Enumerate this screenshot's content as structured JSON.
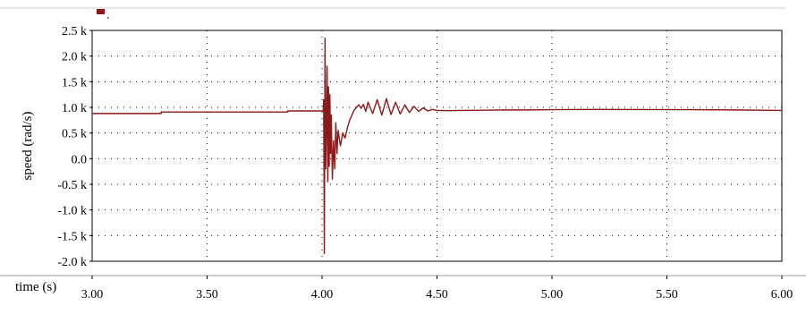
{
  "chart_data": {
    "type": "line",
    "title": "",
    "xlabel": "time (s)",
    "ylabel": "speed (rad/s)",
    "xlim": [
      3.0,
      6.0
    ],
    "ylim": [
      -2000,
      2500
    ],
    "xticks": [
      3.0,
      3.5,
      4.0,
      4.5,
      5.0,
      5.5,
      6.0
    ],
    "xtick_labels": [
      "3.00",
      "3.50",
      "4.00",
      "4.50",
      "5.00",
      "5.50",
      "6.00"
    ],
    "yticks": [
      2500,
      2000,
      1500,
      1000,
      500,
      0,
      -500,
      -1000,
      -1500,
      -2000
    ],
    "ytick_labels": [
      "2.5 k",
      "2.0 k",
      "1.5 k",
      "1.0 k",
      "0.5 k",
      "0.0",
      "-0.5 k",
      "-1.0 k",
      "-1.5 k",
      "-2.0 k"
    ],
    "grid": true,
    "legend": "top-left",
    "series_color": "#8b1a1a",
    "series": [
      {
        "name": "",
        "x": [
          3.0,
          3.3,
          3.3,
          3.85,
          3.85,
          4.005,
          4.007,
          4.01,
          4.013,
          4.016,
          4.019,
          4.022,
          4.025,
          4.028,
          4.031,
          4.034,
          4.037,
          4.04,
          4.045,
          4.05,
          4.055,
          4.06,
          4.065,
          4.07,
          4.08,
          4.09,
          4.1,
          4.11,
          4.12,
          4.13,
          4.14,
          4.15,
          4.16,
          4.17,
          4.18,
          4.19,
          4.2,
          4.22,
          4.24,
          4.26,
          4.28,
          4.3,
          4.32,
          4.34,
          4.36,
          4.38,
          4.4,
          4.42,
          4.44,
          4.46,
          4.48,
          4.5,
          4.55,
          4.6,
          4.7,
          4.8,
          4.9,
          5.0,
          5.2,
          5.4,
          5.6,
          5.8,
          6.0
        ],
        "y": [
          880,
          880,
          910,
          910,
          930,
          930,
          1150,
          -1850,
          2350,
          -200,
          600,
          1800,
          -450,
          1400,
          -150,
          1250,
          100,
          850,
          -400,
          350,
          -200,
          700,
          100,
          550,
          250,
          500,
          400,
          600,
          750,
          850,
          950,
          1000,
          1050,
          980,
          1060,
          920,
          1100,
          880,
          1150,
          850,
          1170,
          860,
          1100,
          870,
          1050,
          900,
          1020,
          920,
          990,
          930,
          960,
          940,
          935,
          940,
          945,
          950,
          950,
          955,
          960,
          958,
          955,
          950,
          940
        ]
      }
    ]
  }
}
